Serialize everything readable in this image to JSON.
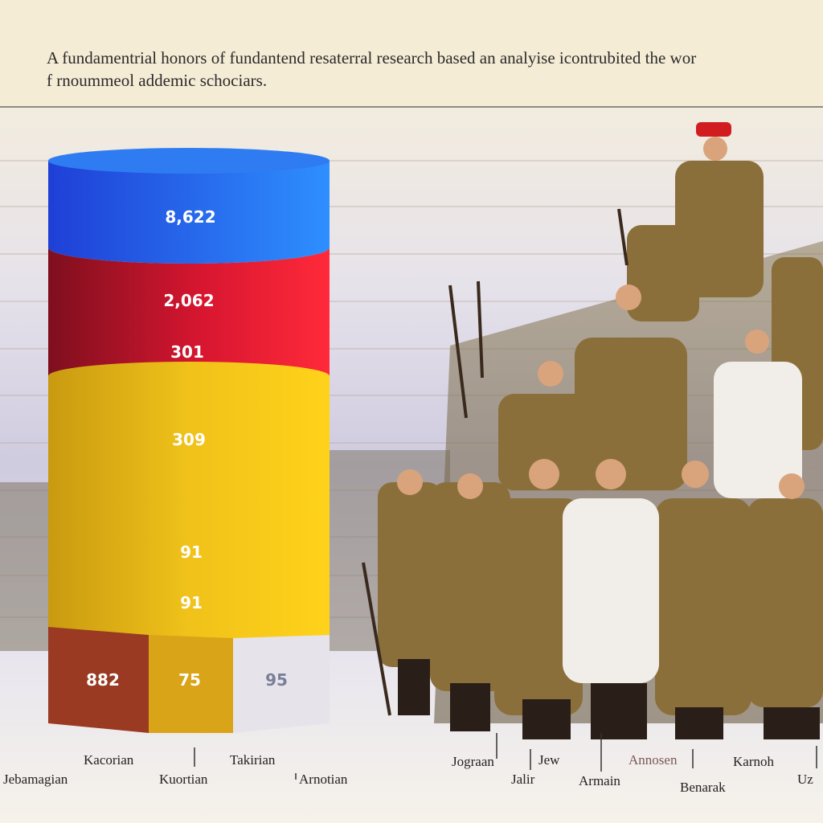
{
  "chart_data": {
    "type": "bar",
    "title_lines": [
      "A fundamentrial honors of fundantend resaterral research based an analyise icontrubited the wor",
      "f rnoummeol addemic schociars."
    ],
    "stack_values": [
      "8,622",
      "2,062",
      "301",
      "309",
      "91",
      "91"
    ],
    "base_values": [
      "882",
      "75",
      "95"
    ],
    "categories": [
      "Kacorian",
      "Jebamagian",
      "Kuortian",
      "Takirian",
      "Arnotian",
      "Jograan",
      "Jalir",
      "Jew",
      "Armain",
      "Annosen",
      "Benarak",
      "Karnoh",
      "Uz"
    ]
  }
}
